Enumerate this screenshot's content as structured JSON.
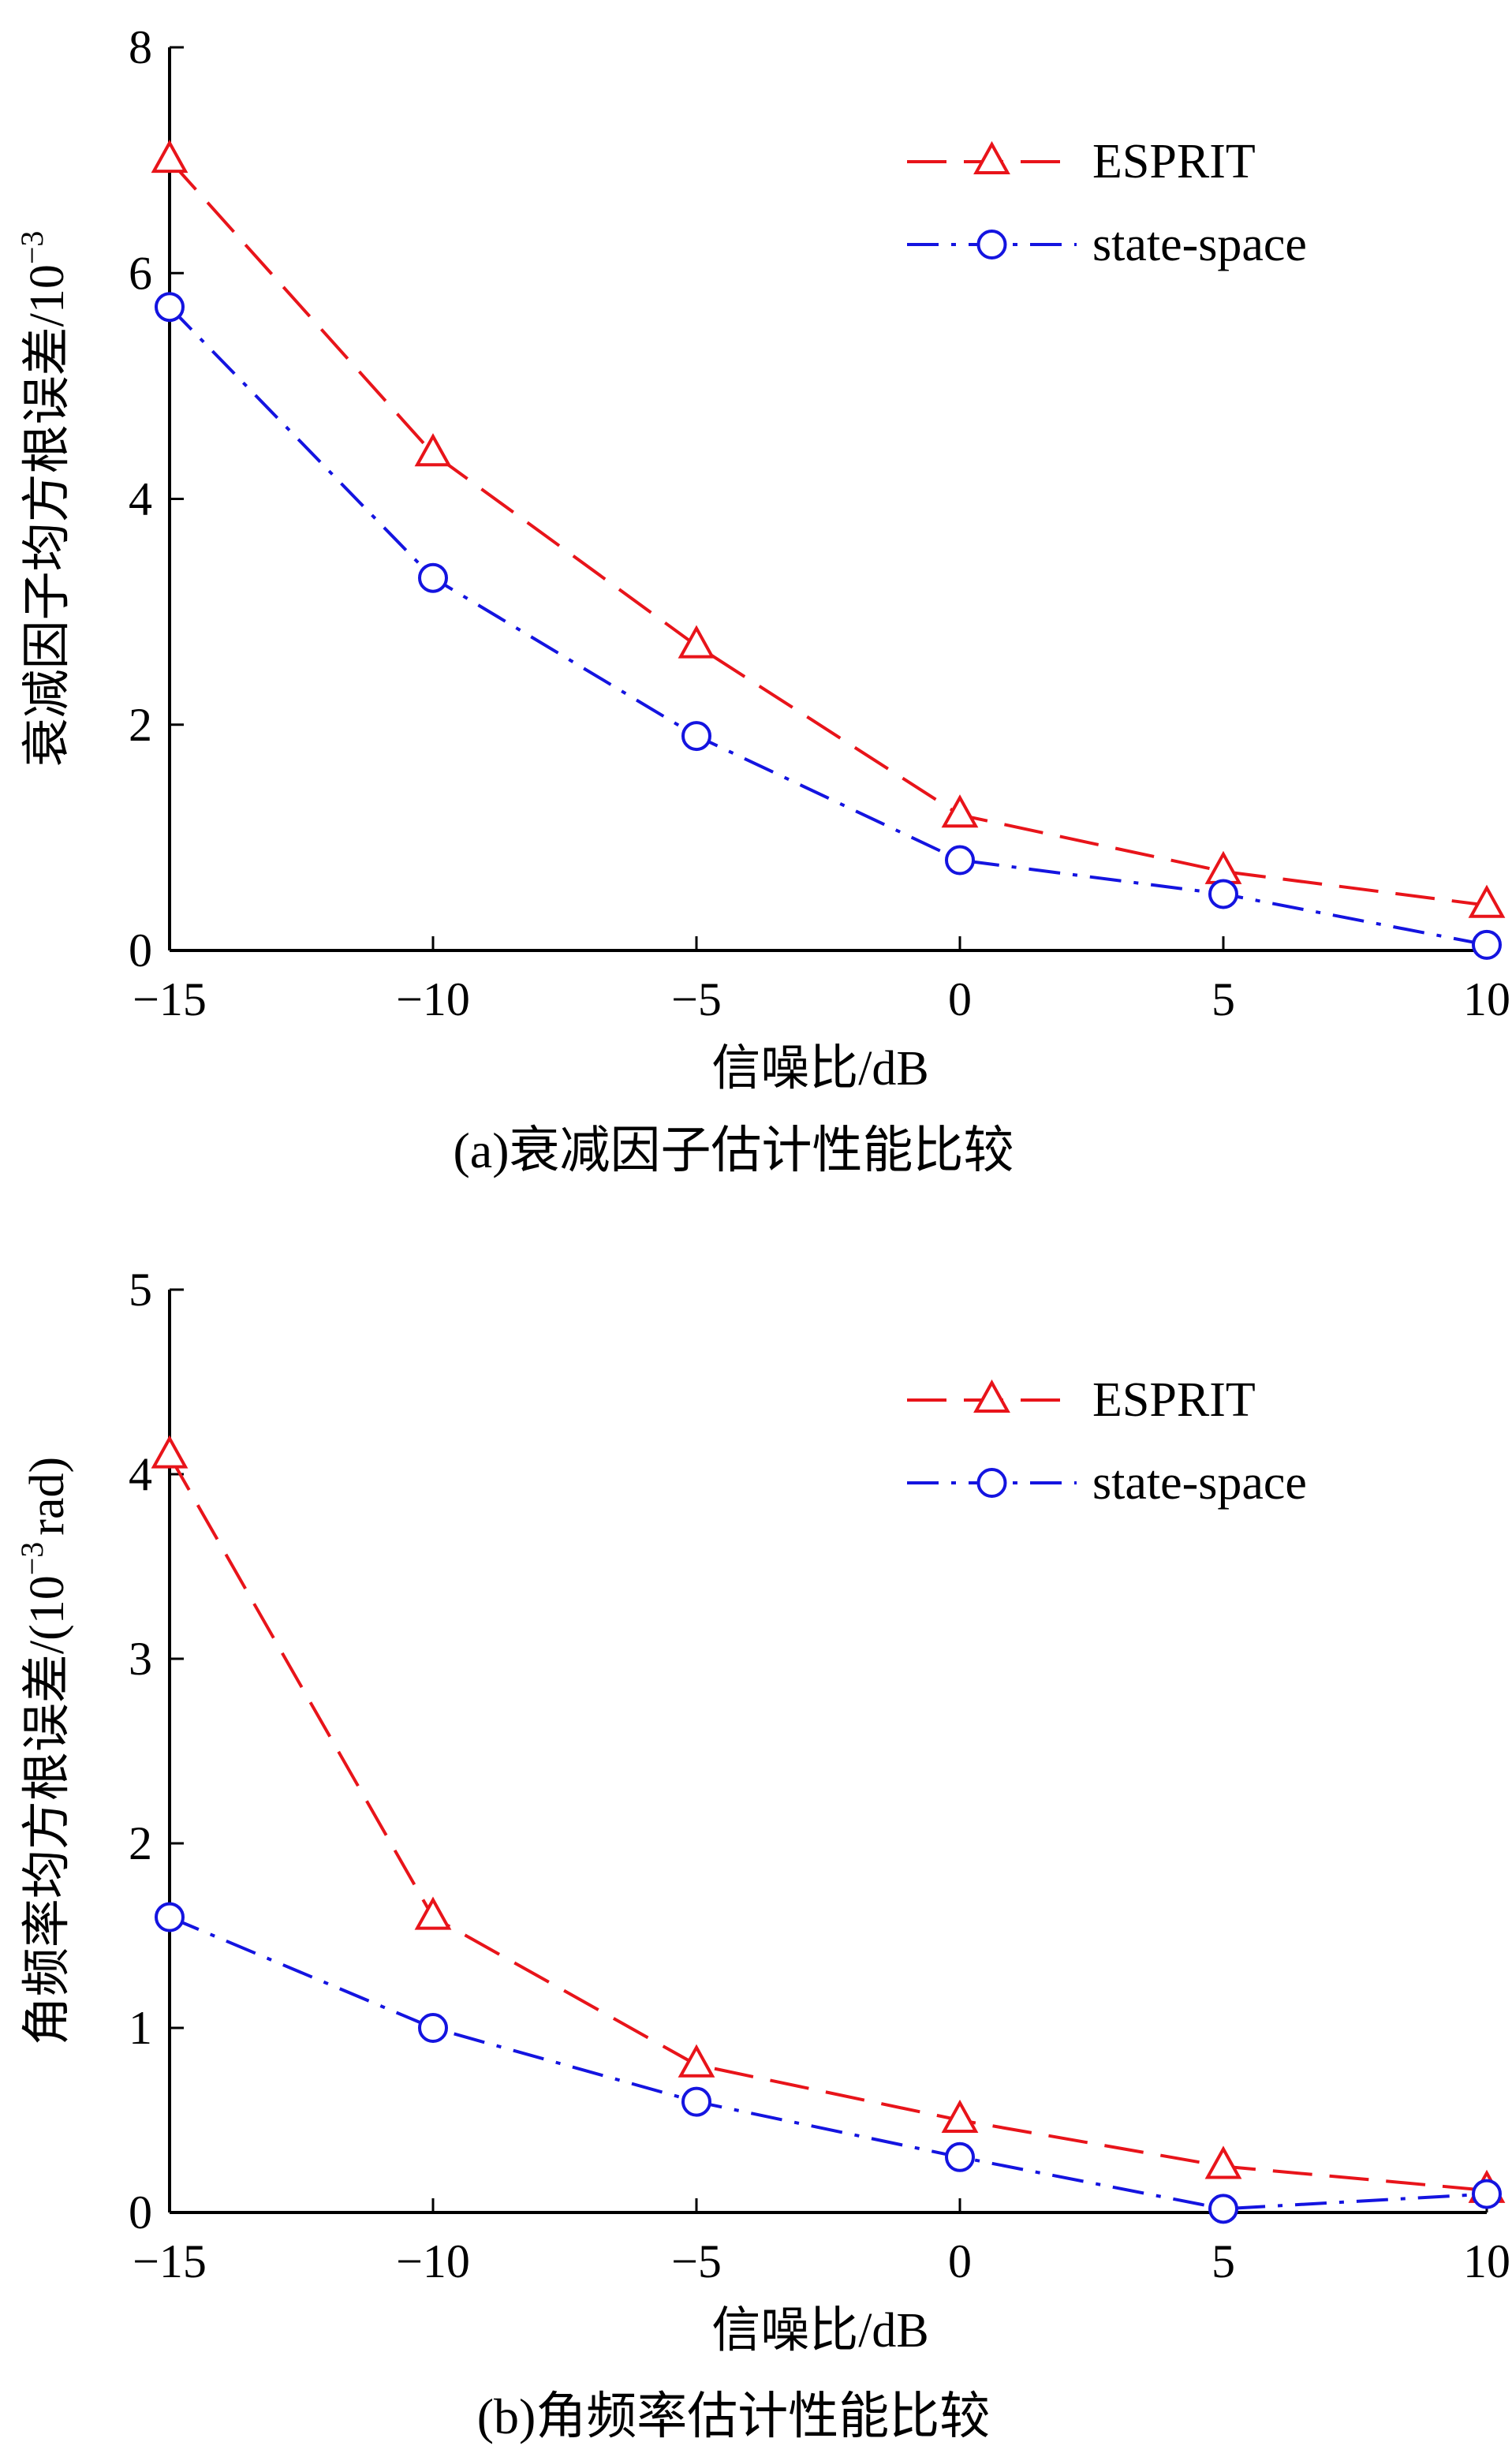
{
  "chart_data": [
    {
      "type": "line",
      "caption": "(a)衰减因子估计性能比较",
      "xlabel": "信噪比/dB",
      "ylabel": "衰减因子均方根误差/10",
      "ylabel_exponent": "−3",
      "x": [
        -15,
        -10,
        -5,
        0,
        5,
        10
      ],
      "xticks": [
        "−15",
        "−10",
        "−5",
        "0",
        "5",
        "10"
      ],
      "yticks": [
        "0",
        "2",
        "4",
        "6",
        "8"
      ],
      "xlim": [
        -15,
        10
      ],
      "ylim": [
        0,
        8
      ],
      "grid": false,
      "legend_position": "top-right",
      "series": [
        {
          "name": "ESPRIT",
          "values": [
            7.0,
            4.4,
            2.7,
            1.2,
            0.7,
            0.4
          ],
          "color": "#e8141a",
          "marker": "triangle",
          "dash": "long-dash"
        },
        {
          "name": "state-space",
          "values": [
            5.7,
            3.3,
            1.9,
            0.8,
            0.5,
            0.05
          ],
          "color": "#1414e0",
          "marker": "circle",
          "dash": "dash-dot"
        }
      ]
    },
    {
      "type": "line",
      "caption": "(b)角频率估计性能比较",
      "xlabel": "信噪比/dB",
      "ylabel": "角频率均方根误差/(10",
      "ylabel_exponent": "−3",
      "ylabel_suffix": "rad)",
      "x": [
        -15,
        -10,
        -5,
        0,
        5,
        10
      ],
      "xticks": [
        "−15",
        "−10",
        "−5",
        "0",
        "5",
        "10"
      ],
      "yticks": [
        "0",
        "1",
        "2",
        "3",
        "4",
        "5"
      ],
      "xlim": [
        -15,
        10
      ],
      "ylim": [
        0,
        5
      ],
      "grid": false,
      "legend_position": "top-right",
      "series": [
        {
          "name": "ESPRIT",
          "values": [
            4.1,
            1.6,
            0.8,
            0.5,
            0.25,
            0.12
          ],
          "color": "#e8141a",
          "marker": "triangle",
          "dash": "long-dash"
        },
        {
          "name": "state-space",
          "values": [
            1.6,
            1.0,
            0.6,
            0.3,
            0.02,
            0.1
          ],
          "color": "#1414e0",
          "marker": "circle",
          "dash": "dash-dot"
        }
      ]
    }
  ]
}
